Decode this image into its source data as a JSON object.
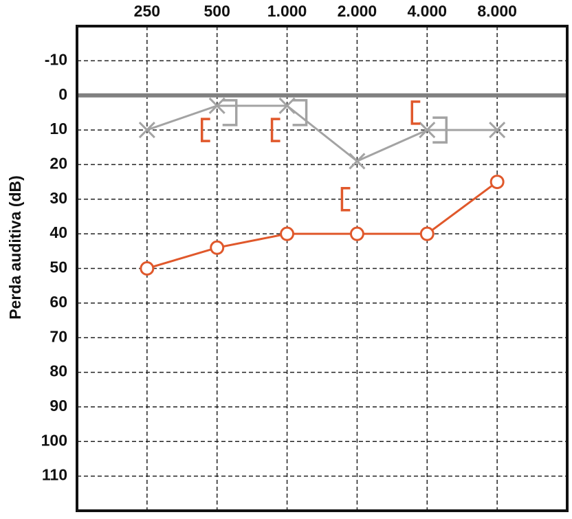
{
  "chart_data": {
    "type": "line",
    "y_label": "Perda auditiva (dB)",
    "x": [
      250,
      500,
      1000,
      2000,
      4000,
      8000
    ],
    "xlim": [
      125,
      16000
    ],
    "xscale": "log",
    "xticks": [
      250,
      500,
      {
        "value": 1000,
        "label": "1.000"
      },
      {
        "value": 2000,
        "label": "2.000"
      },
      {
        "value": 4000,
        "label": "4.000"
      },
      {
        "value": 8000,
        "label": "8.000"
      }
    ],
    "ylim": [
      -20,
      120
    ],
    "yticks": [
      -10,
      0,
      10,
      20,
      30,
      40,
      50,
      60,
      70,
      80,
      90,
      100,
      110
    ],
    "y_inverted": true,
    "grid": true,
    "hline": 0,
    "hline_color": "#808080",
    "series": [
      {
        "color": "#e0582b",
        "marker": "circle",
        "line": true,
        "values": [
          50,
          44,
          40,
          40,
          40,
          25
        ]
      },
      {
        "color": "#a3a3a3",
        "marker": "x",
        "line": true,
        "values": [
          10,
          3,
          3,
          19,
          10,
          10
        ]
      },
      {
        "color": "#a3a3a3",
        "marker": "bracket-right",
        "line": false,
        "values": [
          null,
          5,
          5,
          null,
          10,
          null
        ]
      },
      {
        "color": "#e0582b",
        "marker": "bracket-left",
        "line": false,
        "values": [
          null,
          10,
          10,
          30,
          5,
          null
        ]
      }
    ]
  }
}
